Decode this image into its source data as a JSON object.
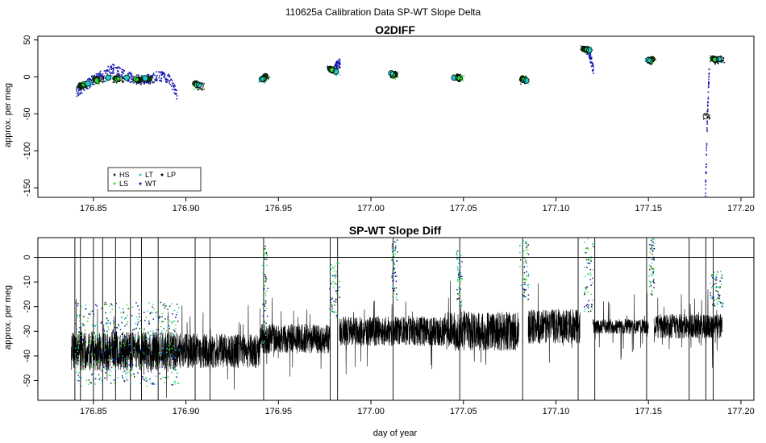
{
  "figure": {
    "title": "110625a   Calibration Data SP-WT Slope Delta",
    "xlabel": "day of year",
    "colors": {
      "HS": "#0b3d0b",
      "LS": "#33dd33",
      "LT": "#22cccc",
      "WT": "#1010b0",
      "LP": "#000000"
    }
  },
  "chart_data": [
    {
      "type": "scatter",
      "title": "O2DIFF",
      "xlabel": "",
      "ylabel": "approx. per meg",
      "xlim": [
        176.82,
        177.207
      ],
      "ylim": [
        -163,
        55
      ],
      "xticks": [
        176.85,
        176.9,
        176.95,
        177.0,
        177.05,
        177.1,
        177.15,
        177.2
      ],
      "xtick_labels": [
        "176.85",
        "176.90",
        "176.95",
        "177.00",
        "177.05",
        "177.10",
        "177.15",
        "177.20"
      ],
      "yticks": [
        -150,
        -100,
        -50,
        0,
        50
      ],
      "ytick_labels": [
        "-150",
        "-100",
        "-50",
        "0",
        "50"
      ],
      "legend": {
        "position": "bottom-left",
        "entries": [
          "HS",
          "LT",
          "LP",
          "LS",
          "WT"
        ]
      },
      "wt_runs": [
        {
          "x0": 176.84,
          "x1": 176.895,
          "base": 0,
          "knots": [
            [
              176.84,
              -20
            ],
            [
              176.845,
              -12
            ],
            [
              176.85,
              -3
            ],
            [
              176.855,
              4
            ],
            [
              176.86,
              12
            ],
            [
              176.865,
              5
            ],
            [
              176.87,
              0
            ],
            [
              176.875,
              -4
            ],
            [
              176.88,
              -2
            ],
            [
              176.885,
              2
            ],
            [
              176.89,
              -1
            ],
            [
              176.893,
              -12
            ],
            [
              176.895,
              -25
            ]
          ]
        },
        {
          "x0": 176.98,
          "x1": 176.983,
          "knots": [
            [
              176.98,
              12
            ],
            [
              176.983,
              20
            ]
          ]
        },
        {
          "x0": 177.116,
          "x1": 177.12,
          "knots": [
            [
              177.116,
              40
            ],
            [
              177.118,
              30
            ],
            [
              177.12,
              10
            ]
          ]
        },
        {
          "x0": 177.1805,
          "x1": 177.1825,
          "knots": [
            [
              177.1805,
              -158
            ],
            [
              177.1815,
              -55
            ],
            [
              177.1825,
              10
            ]
          ]
        }
      ],
      "series": [
        {
          "name": "HS",
          "points": [
            [
              176.843,
              -12
            ],
            [
              176.851,
              -3
            ],
            [
              176.862,
              -2
            ],
            [
              176.875,
              -4
            ],
            [
              176.88,
              -3
            ],
            [
              176.905,
              -9
            ],
            [
              176.943,
              1
            ],
            [
              176.978,
              11
            ],
            [
              177.013,
              3
            ],
            [
              177.047,
              0
            ],
            [
              177.082,
              -2
            ],
            [
              177.115,
              38
            ],
            [
              177.152,
              24
            ],
            [
              177.185,
              25
            ]
          ]
        },
        {
          "name": "LS",
          "points": [
            [
              176.845,
              -10
            ],
            [
              176.852,
              -5
            ],
            [
              176.863,
              -3
            ],
            [
              176.873,
              -3
            ],
            [
              176.906,
              -11
            ],
            [
              176.942,
              -2
            ],
            [
              176.979,
              10
            ],
            [
              177.012,
              2
            ],
            [
              177.048,
              -2
            ],
            [
              177.083,
              -3
            ],
            [
              177.117,
              37
            ],
            [
              177.151,
              22
            ],
            [
              177.186,
              24
            ]
          ]
        },
        {
          "name": "LT",
          "points": [
            [
              176.847,
              -9
            ],
            [
              176.858,
              -1
            ],
            [
              176.868,
              -1
            ],
            [
              176.878,
              -2
            ],
            [
              176.907,
              -11
            ],
            [
              176.941,
              -3
            ],
            [
              176.981,
              7
            ],
            [
              177.011,
              5
            ],
            [
              177.045,
              -1
            ],
            [
              177.084,
              -5
            ],
            [
              177.118,
              36
            ],
            [
              177.15,
              23
            ],
            [
              177.188,
              24
            ]
          ]
        },
        {
          "name": "LP",
          "points": [
            [
              176.844,
              -12
            ],
            [
              176.854,
              -3
            ],
            [
              176.864,
              -2
            ],
            [
              176.874,
              -5
            ],
            [
              176.908,
              -12
            ],
            [
              176.942,
              -3
            ],
            [
              176.979,
              9
            ],
            [
              177.012,
              4
            ],
            [
              177.047,
              -1
            ],
            [
              177.082,
              -4
            ],
            [
              177.116,
              37
            ],
            [
              177.151,
              22
            ],
            [
              177.181,
              -53
            ],
            [
              177.186,
              23
            ],
            [
              177.189,
              24
            ]
          ]
        }
      ]
    },
    {
      "type": "line",
      "title": "SP-WT Slope Diff",
      "xlabel": "day of year",
      "ylabel": "approx. per meg",
      "xlim": [
        176.82,
        177.207
      ],
      "ylim": [
        -58,
        8
      ],
      "xticks": [
        176.85,
        176.9,
        176.95,
        177.0,
        177.05,
        177.1,
        177.15,
        177.2
      ],
      "xtick_labels": [
        "176.85",
        "176.90",
        "176.95",
        "177.00",
        "177.05",
        "177.10",
        "177.15",
        "177.20"
      ],
      "yticks": [
        -50,
        -40,
        -30,
        -20,
        -10,
        0
      ],
      "ytick_labels": [
        "-50",
        "-40",
        "-30",
        "-20",
        "-10",
        "0"
      ],
      "reference_line_y": 0,
      "trace_segments": [
        {
          "x0": 176.838,
          "x1": 176.895,
          "base": -38,
          "noise": 8
        },
        {
          "x0": 176.895,
          "x1": 176.94,
          "base": -38,
          "noise": 7
        },
        {
          "x0": 176.94,
          "x1": 176.978,
          "base": -33,
          "noise": 6
        },
        {
          "x0": 176.983,
          "x1": 177.04,
          "base": -30,
          "noise": 6
        },
        {
          "x0": 177.04,
          "x1": 177.08,
          "base": -30,
          "noise": 8
        },
        {
          "x0": 177.085,
          "x1": 177.113,
          "base": -28,
          "noise": 7
        },
        {
          "x0": 177.12,
          "x1": 177.15,
          "base": -28,
          "noise": 3
        },
        {
          "x0": 177.153,
          "x1": 177.19,
          "base": -28,
          "noise": 5
        }
      ],
      "spikes": [
        176.84,
        176.843,
        176.85,
        176.855,
        176.862,
        176.87,
        176.876,
        176.885,
        176.905,
        176.913,
        176.942,
        176.978,
        176.982,
        177.012,
        177.048,
        177.082,
        177.112,
        177.121,
        177.149,
        177.172,
        177.181,
        177.185
      ],
      "calibration_runs": [
        {
          "x0": 176.84,
          "x1": 176.896,
          "ymin": -52,
          "ymax": -18
        },
        {
          "x0": 176.941,
          "x1": 176.944,
          "ymin": -35,
          "ymax": 5
        },
        {
          "x0": 176.977,
          "x1": 176.983,
          "ymin": -25,
          "ymax": -2
        },
        {
          "x0": 177.011,
          "x1": 177.014,
          "ymin": -18,
          "ymax": 8
        },
        {
          "x0": 177.046,
          "x1": 177.049,
          "ymin": -20,
          "ymax": 3
        },
        {
          "x0": 177.08,
          "x1": 177.085,
          "ymin": -17,
          "ymax": 8
        },
        {
          "x0": 177.115,
          "x1": 177.12,
          "ymin": -22,
          "ymax": 8
        },
        {
          "x0": 177.15,
          "x1": 177.153,
          "ymin": -15,
          "ymax": 8
        },
        {
          "x0": 177.183,
          "x1": 177.19,
          "ymin": -20,
          "ymax": -5
        }
      ]
    }
  ]
}
